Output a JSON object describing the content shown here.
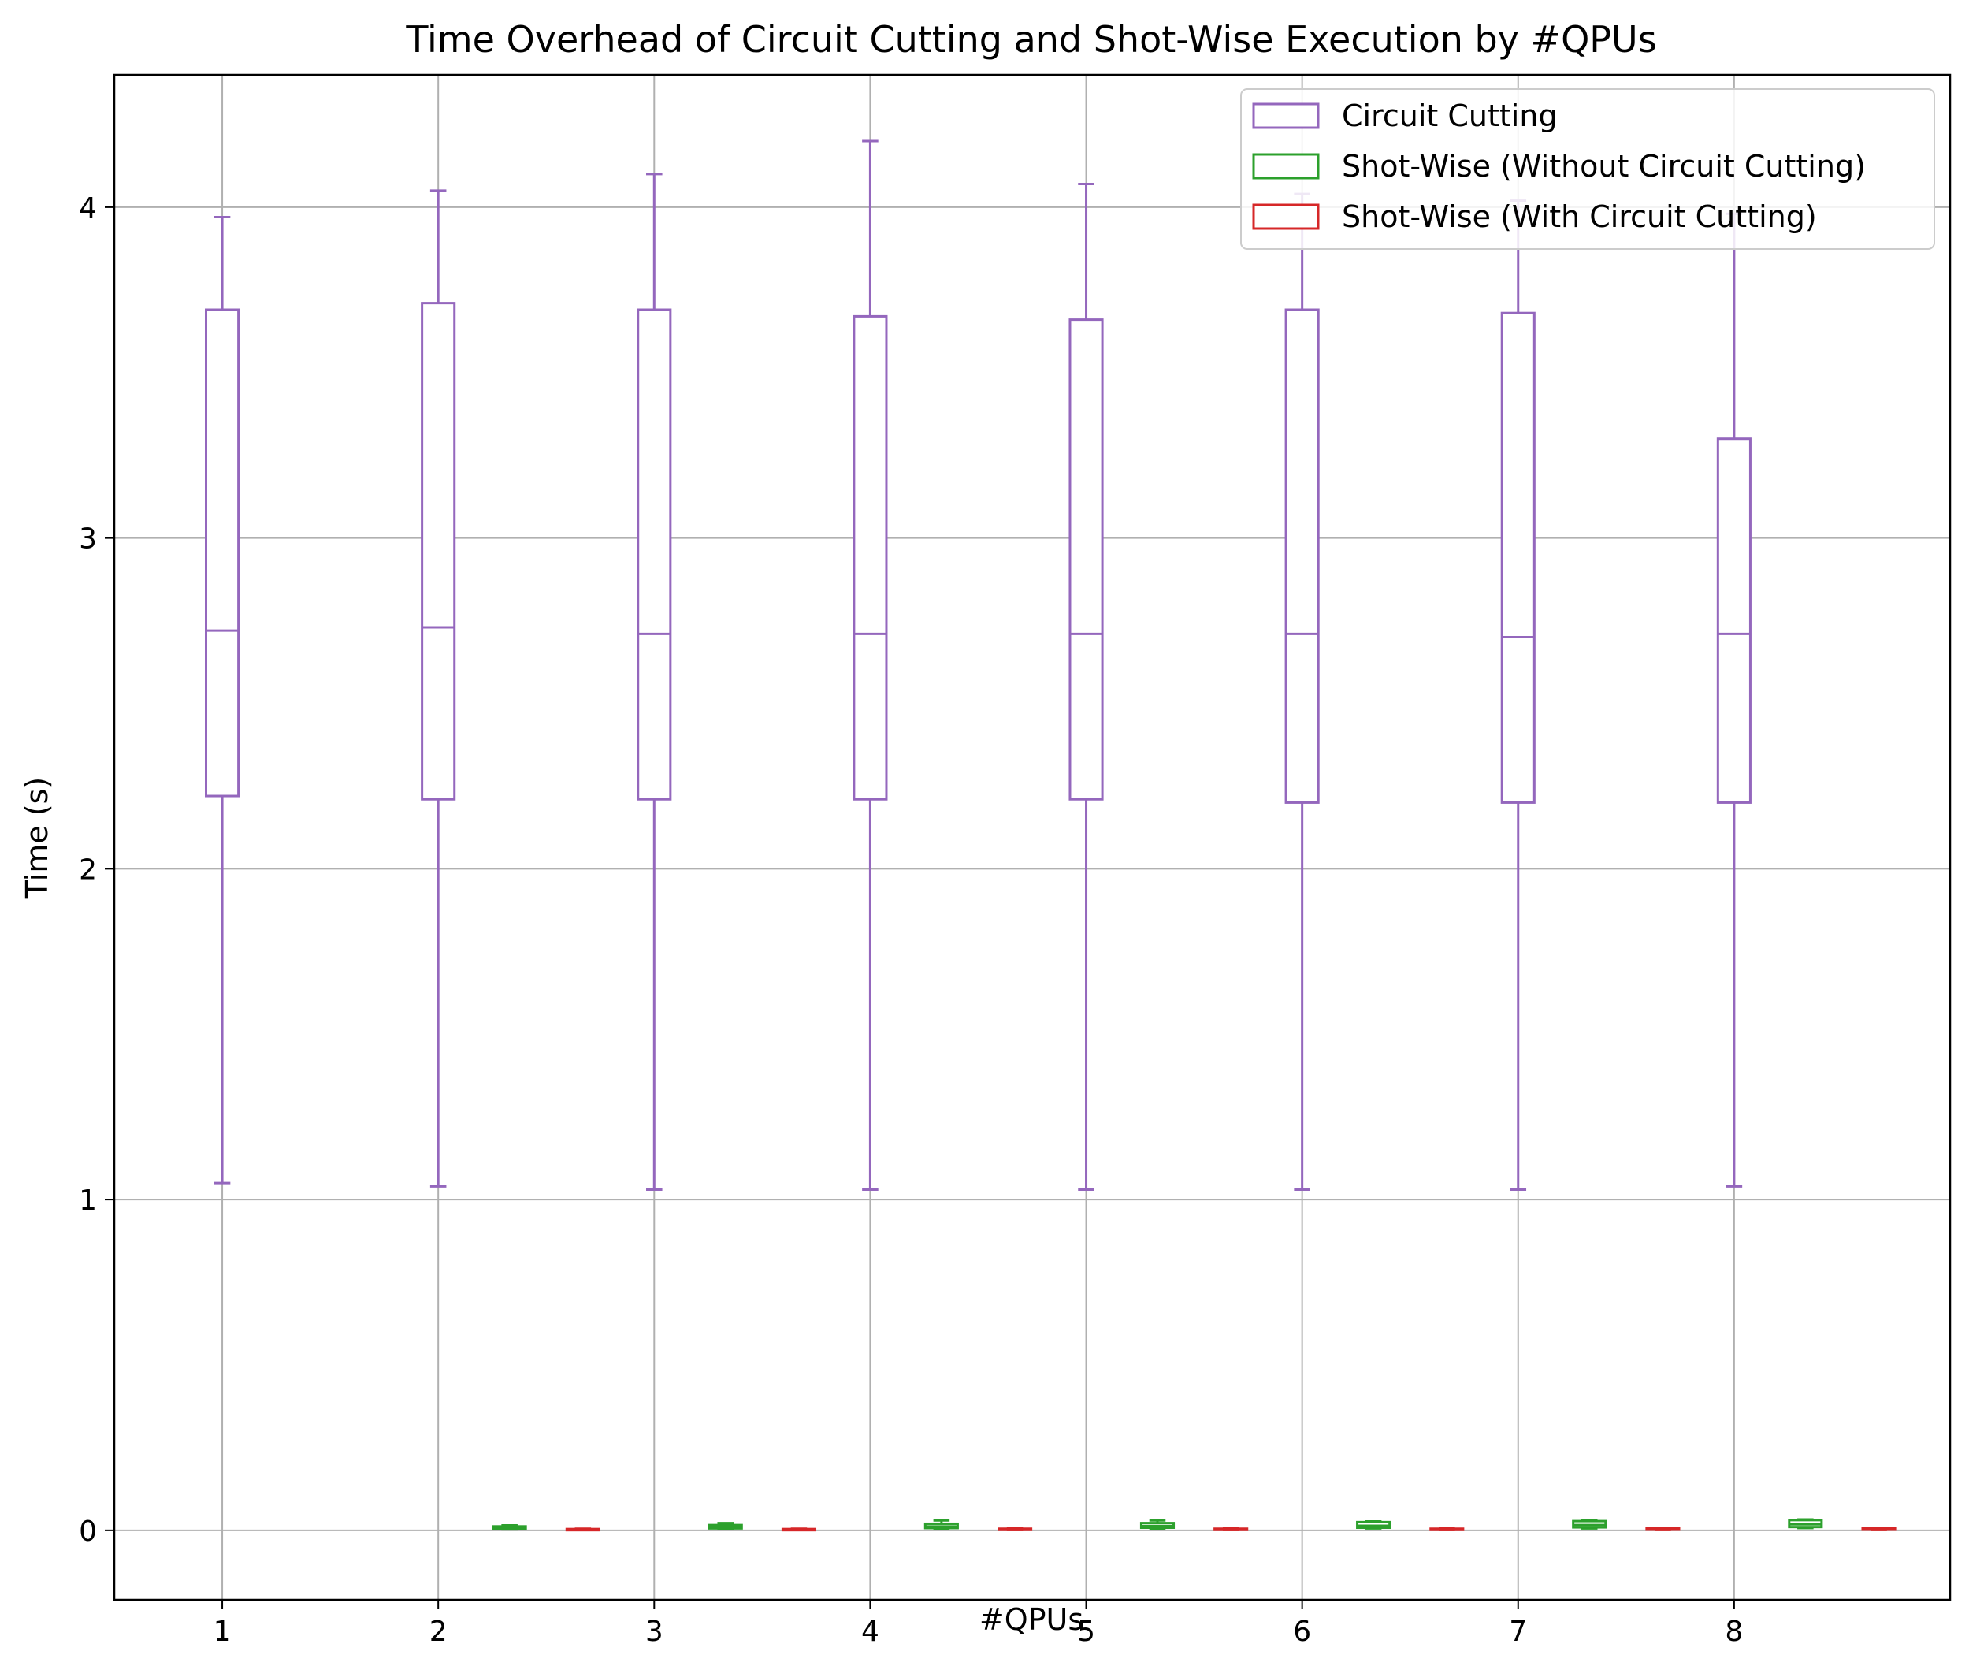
{
  "colors": {
    "circuit_cutting": "#9467bd",
    "shotwise_without": "#2ca02c",
    "shotwise_with": "#d62728",
    "grid": "#b0b0b0",
    "axes": "#000000"
  },
  "chart_data": {
    "type": "box",
    "title": "Time Overhead of Circuit Cutting and Shot-Wise Execution by #QPUs",
    "xlabel": "#QPUs",
    "ylabel": "Time (s)",
    "categories": [
      "1",
      "2",
      "3",
      "4",
      "5",
      "6",
      "7",
      "8"
    ],
    "x_ticks": [
      "1",
      "2",
      "3",
      "4",
      "5",
      "6",
      "7",
      "8"
    ],
    "y_ticks": [
      "0",
      "1",
      "2",
      "3",
      "4"
    ],
    "ylim": [
      -0.21,
      4.4
    ],
    "xlim": [
      0.5,
      9.0
    ],
    "grid": true,
    "legend_position": "top-right",
    "series": [
      {
        "name": "Circuit Cutting",
        "color_key": "circuit_cutting",
        "offset": 0.0,
        "boxes": [
          {
            "x": 1,
            "whislo": 1.05,
            "q1": 2.22,
            "med": 2.72,
            "q3": 3.69,
            "whishi": 3.97
          },
          {
            "x": 2,
            "whislo": 1.04,
            "q1": 2.21,
            "med": 2.73,
            "q3": 3.71,
            "whishi": 4.05
          },
          {
            "x": 3,
            "whislo": 1.03,
            "q1": 2.21,
            "med": 2.71,
            "q3": 3.69,
            "whishi": 4.1
          },
          {
            "x": 4,
            "whislo": 1.03,
            "q1": 2.21,
            "med": 2.71,
            "q3": 3.67,
            "whishi": 4.2
          },
          {
            "x": 5,
            "whislo": 1.03,
            "q1": 2.21,
            "med": 2.71,
            "q3": 3.66,
            "whishi": 4.07
          },
          {
            "x": 6,
            "whislo": 1.03,
            "q1": 2.2,
            "med": 2.71,
            "q3": 3.69,
            "whishi": 4.04
          },
          {
            "x": 7,
            "whislo": 1.03,
            "q1": 2.2,
            "med": 2.7,
            "q3": 3.68,
            "whishi": 4.02
          },
          {
            "x": 8,
            "whislo": 1.04,
            "q1": 2.2,
            "med": 2.71,
            "q3": 3.3,
            "whishi": 3.98
          }
        ]
      },
      {
        "name": "Shot-Wise (Without Circuit Cutting)",
        "color_key": "shotwise_without",
        "offset": 0.33,
        "boxes": [
          {
            "x": 2,
            "whislo": 0.003,
            "q1": 0.005,
            "med": 0.008,
            "q3": 0.012,
            "whishi": 0.015
          },
          {
            "x": 3,
            "whislo": 0.004,
            "q1": 0.006,
            "med": 0.01,
            "q3": 0.016,
            "whishi": 0.022
          },
          {
            "x": 4,
            "whislo": 0.005,
            "q1": 0.007,
            "med": 0.012,
            "q3": 0.02,
            "whishi": 0.03
          },
          {
            "x": 5,
            "whislo": 0.005,
            "q1": 0.008,
            "med": 0.013,
            "q3": 0.022,
            "whishi": 0.03
          },
          {
            "x": 6,
            "whislo": 0.006,
            "q1": 0.008,
            "med": 0.014,
            "q3": 0.025,
            "whishi": 0.027
          },
          {
            "x": 7,
            "whislo": 0.006,
            "q1": 0.009,
            "med": 0.016,
            "q3": 0.028,
            "whishi": 0.03
          },
          {
            "x": 8,
            "whislo": 0.007,
            "q1": 0.01,
            "med": 0.018,
            "q3": 0.031,
            "whishi": 0.033
          }
        ]
      },
      {
        "name": "Shot-Wise (With Circuit Cutting)",
        "color_key": "shotwise_with",
        "offset": 0.67,
        "boxes": [
          {
            "x": 2,
            "whislo": 0.001,
            "q1": 0.002,
            "med": 0.003,
            "q3": 0.004,
            "whishi": 0.005
          },
          {
            "x": 3,
            "whislo": 0.001,
            "q1": 0.002,
            "med": 0.003,
            "q3": 0.004,
            "whishi": 0.005
          },
          {
            "x": 4,
            "whislo": 0.001,
            "q1": 0.002,
            "med": 0.003,
            "q3": 0.005,
            "whishi": 0.006
          },
          {
            "x": 5,
            "whislo": 0.001,
            "q1": 0.002,
            "med": 0.003,
            "q3": 0.005,
            "whishi": 0.006
          },
          {
            "x": 6,
            "whislo": 0.001,
            "q1": 0.002,
            "med": 0.003,
            "q3": 0.005,
            "whishi": 0.007
          },
          {
            "x": 7,
            "whislo": 0.001,
            "q1": 0.002,
            "med": 0.004,
            "q3": 0.006,
            "whishi": 0.008
          },
          {
            "x": 8,
            "whislo": 0.001,
            "q1": 0.002,
            "med": 0.004,
            "q3": 0.006,
            "whishi": 0.007
          }
        ]
      }
    ]
  }
}
